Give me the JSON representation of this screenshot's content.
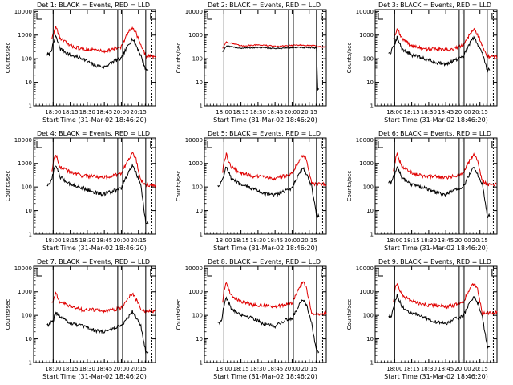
{
  "colors": {
    "events": "#000000",
    "lld": "#e00000",
    "background": "#ffffff"
  },
  "chart_data": [
    {
      "type": "line",
      "title": "Det 1: BLACK = Events, RED = LLD",
      "ylabel": "Counts/sec",
      "xlabel": "Start Time (31-Mar-02 18:46:20)",
      "xtick_labels": [
        "18:00",
        "18:15",
        "18:30",
        "18:45",
        "20:00",
        "20:15"
      ],
      "ytick_labels": [
        "1",
        "10",
        "100",
        "1000",
        "10000"
      ],
      "ylim": [
        1,
        12000
      ],
      "xlim": [
        0,
        100
      ],
      "scale": "log",
      "markers": [
        16,
        69,
        73,
        92,
        97
      ],
      "series": [
        {
          "name": "Events",
          "color": "#000000",
          "shape": "flare",
          "start": 11,
          "end": 94,
          "level": [
            150,
            900,
            260,
            120,
            45,
            80,
            700,
            35
          ]
        },
        {
          "name": "LLD",
          "color": "#e00000",
          "shape": "flare",
          "start": 15,
          "end": 100,
          "level": [
            420,
            2300,
            700,
            300,
            210,
            260,
            2300,
            130
          ]
        }
      ]
    },
    {
      "type": "line",
      "title": "Det 2: BLACK = Events, RED = LLD",
      "ylabel": "Counts/sec",
      "xlabel": "Start Time (31-Mar-02 18:46:20)",
      "xtick_labels": [
        "18:00",
        "18:15",
        "18:30",
        "18:45",
        "20:00",
        "20:15"
      ],
      "ytick_labels": [
        "1",
        "10",
        "100",
        "1000",
        "10000"
      ],
      "ylim": [
        1,
        12000
      ],
      "xlim": [
        0,
        100
      ],
      "scale": "log",
      "markers": [
        16,
        69,
        73,
        92,
        97
      ],
      "series": [
        {
          "name": "Events",
          "color": "#000000",
          "shape": "flat",
          "start": 15,
          "end": 94,
          "level": [
            200,
            340,
            280,
            300,
            270,
            300,
            290,
            5
          ]
        },
        {
          "name": "LLD",
          "color": "#e00000",
          "shape": "flat",
          "start": 15,
          "end": 100,
          "level": [
            280,
            520,
            350,
            390,
            330,
            380,
            360,
            320
          ]
        }
      ]
    },
    {
      "type": "line",
      "title": "Det 3: BLACK = Events, RED = LLD",
      "ylabel": "Counts/sec",
      "xlabel": "Start Time (31-Mar-02 18:46:20)",
      "xtick_labels": [
        "18:00",
        "18:15",
        "18:30",
        "18:45",
        "20:00",
        "20:15"
      ],
      "ytick_labels": [
        "1",
        "10",
        "100",
        "1000",
        "10000"
      ],
      "ylim": [
        1,
        12000
      ],
      "xlim": [
        0,
        100
      ],
      "scale": "log",
      "markers": [
        16,
        69,
        73,
        92,
        97
      ],
      "series": [
        {
          "name": "Events",
          "color": "#000000",
          "shape": "flare",
          "start": 11,
          "end": 94,
          "level": [
            180,
            800,
            260,
            120,
            60,
            90,
            800,
            35
          ]
        },
        {
          "name": "LLD",
          "color": "#e00000",
          "shape": "flare",
          "start": 15,
          "end": 100,
          "level": [
            420,
            2000,
            700,
            300,
            230,
            280,
            2000,
            120
          ]
        }
      ]
    },
    {
      "type": "line",
      "title": "Det 4: BLACK = Events, RED = LLD",
      "ylabel": "Counts/sec",
      "xlabel": "Start Time (31-Mar-02 18:46:20)",
      "xtick_labels": [
        "18:00",
        "18:15",
        "18:30",
        "18:45",
        "20:00",
        "20:15"
      ],
      "ytick_labels": [
        "1",
        "10",
        "100",
        "1000",
        "10000"
      ],
      "ylim": [
        1,
        12000
      ],
      "xlim": [
        0,
        100
      ],
      "scale": "log",
      "markers": [
        16,
        69,
        73,
        92,
        97
      ],
      "series": [
        {
          "name": "Events",
          "color": "#000000",
          "shape": "flare",
          "start": 11,
          "end": 94,
          "level": [
            120,
            900,
            250,
            110,
            50,
            70,
            750,
            3
          ]
        },
        {
          "name": "LLD",
          "color": "#e00000",
          "shape": "flare",
          "start": 15,
          "end": 100,
          "level": [
            200,
            2500,
            700,
            350,
            250,
            300,
            2700,
            120
          ]
        }
      ]
    },
    {
      "type": "line",
      "title": "Det 5: BLACK = Events, RED = LLD",
      "ylabel": "Counts/sec",
      "xlabel": "Start Time (31-Mar-02 18:46:20)",
      "xtick_labels": [
        "18:00",
        "18:15",
        "18:30",
        "18:45",
        "20:00",
        "20:15"
      ],
      "ytick_labels": [
        "1",
        "10",
        "100",
        "1000",
        "10000"
      ],
      "ylim": [
        1,
        12000
      ],
      "xlim": [
        0,
        100
      ],
      "scale": "log",
      "markers": [
        16,
        69,
        73,
        92,
        97
      ],
      "series": [
        {
          "name": "Events",
          "color": "#000000",
          "shape": "flare",
          "start": 11,
          "end": 94,
          "level": [
            120,
            750,
            230,
            100,
            45,
            70,
            650,
            6
          ]
        },
        {
          "name": "LLD",
          "color": "#e00000",
          "shape": "flare",
          "start": 15,
          "end": 100,
          "level": [
            160,
            2400,
            700,
            330,
            230,
            300,
            2400,
            130
          ]
        }
      ]
    },
    {
      "type": "line",
      "title": "Det 6: BLACK = Events, RED = LLD",
      "ylabel": "Counts/sec",
      "xlabel": "Start Time (31-Mar-02 18:46:20)",
      "xtick_labels": [
        "18:00",
        "18:15",
        "18:30",
        "18:45",
        "20:00",
        "20:15"
      ],
      "ytick_labels": [
        "1",
        "10",
        "100",
        "1000",
        "10000"
      ],
      "ylim": [
        1,
        12000
      ],
      "xlim": [
        0,
        100
      ],
      "scale": "log",
      "markers": [
        16,
        69,
        73,
        92,
        97
      ],
      "series": [
        {
          "name": "Events",
          "color": "#000000",
          "shape": "flare",
          "start": 11,
          "end": 94,
          "level": [
            150,
            750,
            240,
            110,
            50,
            75,
            650,
            6
          ]
        },
        {
          "name": "LLD",
          "color": "#e00000",
          "shape": "flare",
          "start": 15,
          "end": 100,
          "level": [
            200,
            2400,
            700,
            330,
            240,
            300,
            2400,
            130
          ]
        }
      ]
    },
    {
      "type": "line",
      "title": "Det 7: BLACK = Events, RED = LLD",
      "ylabel": "Counts/sec",
      "xlabel": "Start Time (31-Mar-02 18:46:20)",
      "xtick_labels": [
        "18:00",
        "18:15",
        "18:30",
        "18:45",
        "20:00",
        "20:15"
      ],
      "ytick_labels": [
        "1",
        "10",
        "100",
        "1000",
        "10000"
      ],
      "ylim": [
        1,
        12000
      ],
      "xlim": [
        0,
        100
      ],
      "scale": "log",
      "markers": [
        16,
        69,
        73,
        92,
        97
      ],
      "series": [
        {
          "name": "Events",
          "color": "#000000",
          "shape": "flare",
          "start": 11,
          "end": 94,
          "level": [
            40,
            130,
            90,
            40,
            20,
            30,
            150,
            3
          ]
        },
        {
          "name": "LLD",
          "color": "#e00000",
          "shape": "flare",
          "start": 15,
          "end": 100,
          "level": [
            200,
            900,
            350,
            200,
            150,
            170,
            900,
            150
          ]
        }
      ]
    },
    {
      "type": "line",
      "title": "Det 8: BLACK = Events, RED = LLD",
      "ylabel": "Counts/sec",
      "xlabel": "Start Time (31-Mar-02 18:46:20)",
      "xtick_labels": [
        "18:00",
        "18:15",
        "18:30",
        "18:45",
        "20:00",
        "20:15"
      ],
      "ytick_labels": [
        "1",
        "10",
        "100",
        "1000",
        "10000"
      ],
      "ylim": [
        1,
        12000
      ],
      "xlim": [
        0,
        100
      ],
      "scale": "log",
      "markers": [
        16,
        69,
        73,
        92,
        97
      ],
      "series": [
        {
          "name": "Events",
          "color": "#000000",
          "shape": "flare",
          "start": 11,
          "end": 94,
          "level": [
            50,
            550,
            200,
            90,
            35,
            60,
            500,
            3
          ]
        },
        {
          "name": "LLD",
          "color": "#e00000",
          "shape": "flare",
          "start": 15,
          "end": 100,
          "level": [
            120,
            2500,
            700,
            330,
            230,
            280,
            2500,
            120
          ]
        }
      ]
    },
    {
      "type": "line",
      "title": "Det 9: BLACK = Events, RED = LLD",
      "ylabel": "Counts/sec",
      "xlabel": "Start Time (31-Mar-02 18:46:20)",
      "xtick_labels": [
        "18:00",
        "18:15",
        "18:30",
        "18:45",
        "20:00",
        "20:15"
      ],
      "ytick_labels": [
        "1",
        "10",
        "100",
        "1000",
        "10000"
      ],
      "ylim": [
        1,
        12000
      ],
      "xlim": [
        0,
        100
      ],
      "scale": "log",
      "markers": [
        16,
        69,
        73,
        92,
        97
      ],
      "series": [
        {
          "name": "Events",
          "color": "#000000",
          "shape": "flare",
          "start": 11,
          "end": 94,
          "level": [
            90,
            700,
            230,
            100,
            45,
            70,
            650,
            5
          ]
        },
        {
          "name": "LLD",
          "color": "#e00000",
          "shape": "flare",
          "start": 15,
          "end": 100,
          "level": [
            130,
            2400,
            700,
            330,
            230,
            280,
            2400,
            130
          ]
        }
      ]
    }
  ]
}
